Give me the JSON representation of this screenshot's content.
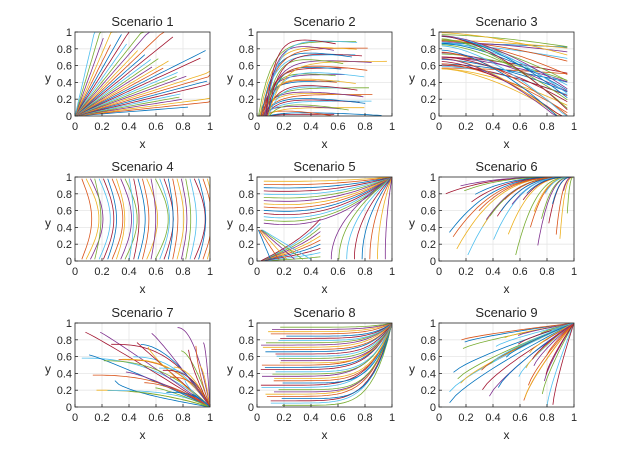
{
  "chart_data": [
    {
      "type": "line",
      "title": "Scenario 1",
      "xlabel": "x",
      "ylabel": "y",
      "xlim": [
        0,
        1
      ],
      "ylim": [
        0,
        1
      ],
      "xticks": [
        "0",
        "0.2",
        "0.4",
        "0.6",
        "0.8",
        "1"
      ],
      "yticks": [
        "0",
        "0.2",
        "0.4",
        "0.6",
        "0.8",
        "1"
      ],
      "grid": true,
      "flow": "rays from origin (0,0), trajectories fan outward"
    },
    {
      "type": "line",
      "title": "Scenario 2",
      "xlabel": "x",
      "ylabel": "y",
      "xlim": [
        0,
        1
      ],
      "ylim": [
        0,
        1
      ],
      "xticks": [
        "0",
        "0.2",
        "0.4",
        "0.6",
        "0.8",
        "1"
      ],
      "yticks": [
        "0",
        "0.2",
        "0.4",
        "0.6",
        "0.8",
        "1"
      ],
      "grid": true,
      "flow": "curves rise quickly from y=0 then flatten"
    },
    {
      "type": "line",
      "title": "Scenario 3",
      "xlabel": "x",
      "ylabel": "y",
      "xlim": [
        0,
        1
      ],
      "ylim": [
        0,
        1
      ],
      "xticks": [
        "0",
        "0.2",
        "0.4",
        "0.6",
        "0.8",
        "1"
      ],
      "yticks": [
        "0",
        "0.2",
        "0.4",
        "0.6",
        "0.8",
        "1"
      ],
      "grid": true,
      "flow": "curves start near y=1 and bend downward"
    },
    {
      "type": "line",
      "title": "Scenario 4",
      "xlabel": "x",
      "ylabel": "y",
      "xlim": [
        0,
        1
      ],
      "ylim": [
        0,
        1
      ],
      "xticks": [
        "0",
        "0.2",
        "0.4",
        "0.6",
        "0.8",
        "1"
      ],
      "yticks": [
        "0",
        "0.2",
        "0.4",
        "0.6",
        "0.8",
        "1"
      ],
      "grid": true,
      "flow": "near-vertical arcs bowing toward the right"
    },
    {
      "type": "line",
      "title": "Scenario 5",
      "xlabel": "x",
      "ylabel": "y",
      "xlim": [
        0,
        1
      ],
      "ylim": [
        0,
        1
      ],
      "xticks": [
        "0",
        "0.2",
        "0.4",
        "0.6",
        "0.8",
        "1"
      ],
      "yticks": [
        "0",
        "0.2",
        "0.4",
        "0.6",
        "0.8",
        "1"
      ],
      "grid": true,
      "flow": "saddle near (0.5,0.35), converging to (1,1) and (0,0)"
    },
    {
      "type": "line",
      "title": "Scenario 6",
      "xlabel": "x",
      "ylabel": "y",
      "xlim": [
        0,
        1
      ],
      "ylim": [
        0,
        1
      ],
      "xticks": [
        "0",
        "0.2",
        "0.4",
        "0.6",
        "0.8",
        "1"
      ],
      "yticks": [
        "0",
        "0.2",
        "0.4",
        "0.6",
        "0.8",
        "1"
      ],
      "grid": true,
      "flow": "curves rise and converge to (1,1)"
    },
    {
      "type": "line",
      "title": "Scenario 7",
      "xlabel": "x",
      "ylabel": "y",
      "xlim": [
        0,
        1
      ],
      "ylim": [
        0,
        1
      ],
      "xticks": [
        "0",
        "0.2",
        "0.4",
        "0.6",
        "0.8",
        "1"
      ],
      "yticks": [
        "0",
        "0.2",
        "0.4",
        "0.6",
        "0.8",
        "1"
      ],
      "grid": true,
      "flow": "curves descend and converge to (1,0)"
    },
    {
      "type": "line",
      "title": "Scenario 8",
      "xlabel": "x",
      "ylabel": "y",
      "xlim": [
        0,
        1
      ],
      "ylim": [
        0,
        1
      ],
      "xticks": [
        "0",
        "0.2",
        "0.4",
        "0.6",
        "0.8",
        "1"
      ],
      "yticks": [
        "0",
        "0.2",
        "0.4",
        "0.6",
        "0.8",
        "1"
      ],
      "grid": true,
      "flow": "near-horizontal curves bending to (1,1)"
    },
    {
      "type": "line",
      "title": "Scenario 9",
      "xlabel": "x",
      "ylabel": "y",
      "xlim": [
        0,
        1
      ],
      "ylim": [
        0,
        1
      ],
      "xticks": [
        "0",
        "0.2",
        "0.4",
        "0.6",
        "0.8",
        "1"
      ],
      "yticks": [
        "0",
        "0.2",
        "0.4",
        "0.6",
        "0.8",
        "1"
      ],
      "grid": true,
      "flow": "rays converging to (1,1)"
    }
  ],
  "colors": {
    "series": [
      "#0072BD",
      "#D95319",
      "#EDB120",
      "#7E2F8E",
      "#77AC30",
      "#4DBEEE",
      "#A2142F"
    ],
    "grid": "#e6e6e6",
    "axis": "#262626"
  }
}
